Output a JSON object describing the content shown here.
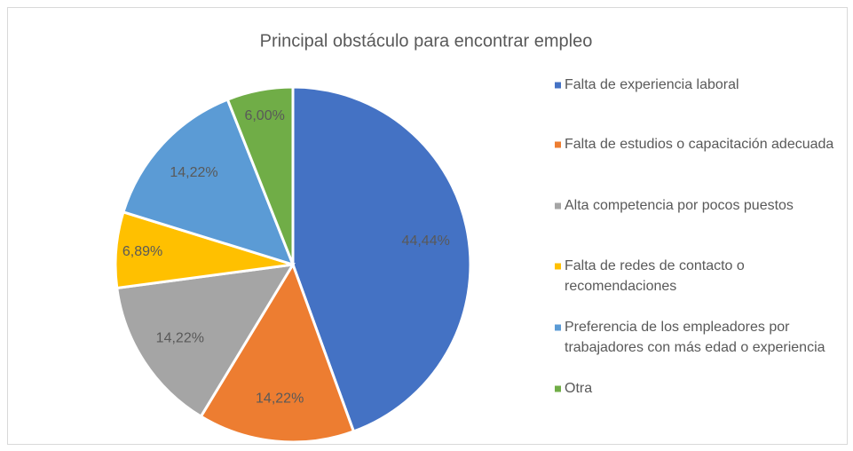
{
  "chart_data": {
    "type": "pie",
    "title": "Principal obstáculo para encontrar empleo",
    "categories": [
      "Falta de experiencia laboral",
      "Falta de estudios o capacitación adecuada",
      "Alta competencia por pocos puestos",
      "Falta de redes de contacto o recomendaciones",
      "Preferencia de los empleadores por trabajadores con más edad o experiencia",
      "Otra"
    ],
    "values": [
      44.44,
      14.22,
      14.22,
      6.89,
      14.22,
      6.0
    ],
    "value_labels": [
      "44,44%",
      "14,22%",
      "14,22%",
      "6,89%",
      "14,22%",
      "6,00%"
    ],
    "colors": [
      "#4472c4",
      "#ed7d31",
      "#a5a5a5",
      "#ffc000",
      "#5b9bd5",
      "#70ad47"
    ],
    "legend": "right"
  }
}
